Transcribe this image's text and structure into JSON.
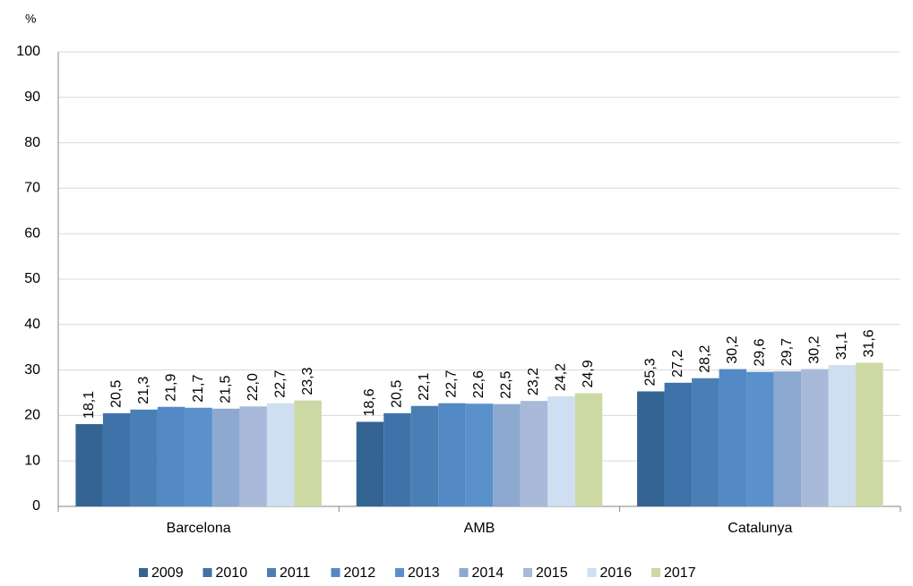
{
  "chart_data": {
    "type": "bar",
    "y_unit": "%",
    "categories": [
      "Barcelona",
      "AMB",
      "Catalunya"
    ],
    "series": [
      {
        "name": "2009",
        "color": "#336492",
        "values": [
          18.1,
          18.6,
          25.3
        ],
        "value_labels": [
          "18,1",
          "18,6",
          "25,3"
        ]
      },
      {
        "name": "2010",
        "color": "#3e72a8",
        "values": [
          20.5,
          20.5,
          27.2
        ],
        "value_labels": [
          "20,5",
          "20,5",
          "27,2"
        ]
      },
      {
        "name": "2011",
        "color": "#4a7fb5",
        "values": [
          21.3,
          22.1,
          28.2
        ],
        "value_labels": [
          "21,3",
          "22,1",
          "28,2"
        ]
      },
      {
        "name": "2012",
        "color": "#5389c4",
        "values": [
          21.9,
          22.7,
          30.2
        ],
        "value_labels": [
          "21,9",
          "22,7",
          "30,2"
        ]
      },
      {
        "name": "2013",
        "color": "#5b91cb",
        "values": [
          21.7,
          22.6,
          29.6
        ],
        "value_labels": [
          "21,7",
          "22,6",
          "29,6"
        ]
      },
      {
        "name": "2014",
        "color": "#8ea9d0",
        "values": [
          21.5,
          22.5,
          29.7
        ],
        "value_labels": [
          "21,5",
          "22,5",
          "29,7"
        ]
      },
      {
        "name": "2015",
        "color": "#a9b9da",
        "values": [
          22.0,
          23.2,
          30.2
        ],
        "value_labels": [
          "22,0",
          "23,2",
          "30,2"
        ]
      },
      {
        "name": "2016",
        "color": "#cddff0",
        "values": [
          22.7,
          24.2,
          31.1
        ],
        "value_labels": [
          "22,7",
          "24,2",
          "31,1"
        ]
      },
      {
        "name": "2017",
        "color": "#cdd9a5",
        "values": [
          23.3,
          24.9,
          31.6
        ],
        "value_labels": [
          "23,3",
          "24,9",
          "31,6"
        ]
      }
    ],
    "ylim": [
      0,
      100
    ],
    "yticks": [
      0,
      10,
      20,
      30,
      40,
      50,
      60,
      70,
      80,
      90,
      100
    ],
    "grid": true,
    "legend": "bottom"
  }
}
